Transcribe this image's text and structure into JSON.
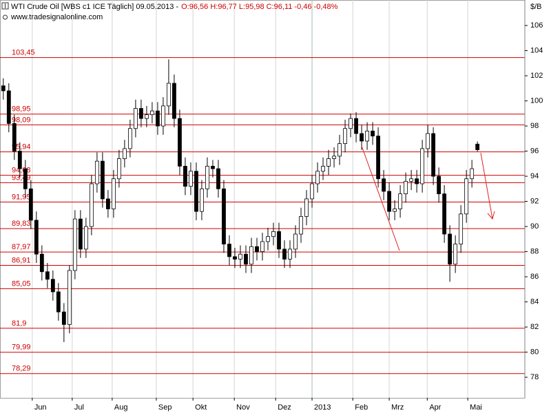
{
  "chart_data": {
    "type": "candlestick",
    "title": "WTI Crude Oil [WBS c1 ICE  Täglich] 09.05.2013 -",
    "quote": "O:96,56 H:96,77 L:95,98 C:96,11 -0,46 -0,48%",
    "subtitle": "www.tradesignalonline.com",
    "unit": "$/B",
    "series": [
      {
        "open": [
          101.2,
          100.8,
          98.2,
          96.0,
          94.6,
          93.0,
          90.5,
          87.8,
          86.4,
          85.8,
          84.8,
          83.2,
          82.2,
          86.5,
          90.6,
          88.2,
          90.0,
          93.4,
          95.2,
          92.2,
          91.4,
          93.8,
          95.4,
          96.2,
          97.8,
          99.4,
          98.6,
          98.9,
          99.2,
          98.0,
          99.6,
          101.4,
          98.6,
          94.8,
          93.2,
          94.4,
          91.2,
          93.0,
          94.8,
          94.6,
          93.0,
          88.6,
          87.6,
          87.4,
          87.8,
          87.0,
          88.4,
          88.0,
          88.8,
          89.2,
          89.6,
          88.2,
          87.4,
          88.2,
          89.4,
          90.8,
          92.2,
          93.4,
          94.4,
          94.8,
          95.4,
          95.6,
          96.6,
          97.8,
          98.6,
          97.4,
          96.8,
          97.6,
          97.2,
          93.8,
          92.8,
          91.2,
          91.4,
          92.6,
          93.6,
          93.8,
          93.4,
          96.2,
          97.4,
          94.0,
          92.6,
          89.4,
          87.0,
          88.6,
          91.0,
          93.8,
          96.56
        ],
        "high": [
          101.8,
          101.4,
          98.9,
          96.7,
          95.3,
          93.7,
          91.2,
          88.5,
          87.1,
          86.5,
          85.5,
          83.9,
          86.9,
          91.3,
          91.3,
          90.7,
          94.1,
          95.9,
          95.9,
          92.9,
          94.5,
          96.1,
          96.9,
          98.5,
          100.1,
          100.1,
          99.6,
          99.9,
          99.9,
          100.3,
          103.3,
          102.1,
          99.3,
          95.5,
          95.1,
          95.1,
          93.7,
          95.5,
          95.3,
          95.3,
          93.7,
          89.3,
          88.3,
          88.5,
          88.5,
          89.1,
          89.1,
          89.5,
          89.9,
          90.3,
          90.3,
          88.9,
          88.9,
          90.1,
          91.5,
          92.9,
          94.1,
          95.1,
          95.5,
          96.1,
          96.3,
          97.3,
          98.5,
          99.0,
          99.1,
          98.1,
          98.3,
          98.3,
          97.9,
          94.5,
          93.5,
          92.1,
          93.3,
          94.3,
          94.5,
          94.5,
          96.9,
          98.1,
          97.9,
          94.7,
          93.3,
          90.1,
          89.3,
          91.7,
          94.5,
          95.3,
          96.77
        ],
        "low": [
          100.1,
          97.5,
          95.3,
          93.9,
          92.3,
          89.8,
          87.1,
          85.7,
          85.1,
          84.1,
          82.5,
          80.8,
          81.5,
          85.8,
          87.5,
          87.5,
          89.3,
          92.7,
          91.5,
          90.7,
          90.7,
          93.1,
          94.7,
          95.5,
          97.1,
          97.9,
          97.9,
          98.2,
          97.3,
          97.3,
          98.9,
          97.9,
          94.1,
          92.5,
          92.5,
          90.5,
          90.5,
          92.3,
          93.9,
          92.3,
          87.9,
          86.9,
          86.7,
          86.7,
          86.3,
          86.3,
          87.3,
          87.3,
          88.1,
          88.5,
          87.5,
          86.7,
          86.7,
          87.5,
          88.7,
          90.1,
          91.5,
          92.7,
          93.7,
          94.1,
          94.7,
          94.9,
          95.9,
          97.1,
          96.7,
          96.1,
          96.1,
          96.5,
          93.1,
          92.1,
          90.5,
          90.5,
          90.7,
          91.9,
          92.9,
          92.7,
          92.7,
          95.5,
          93.3,
          91.9,
          88.7,
          85.6,
          86.3,
          87.9,
          90.3,
          93.1,
          95.98
        ],
        "close": [
          100.8,
          98.2,
          96.0,
          94.6,
          93.0,
          90.5,
          87.8,
          86.4,
          85.8,
          84.8,
          83.2,
          82.2,
          86.5,
          90.6,
          88.2,
          90.0,
          93.4,
          95.2,
          92.2,
          91.4,
          93.8,
          95.4,
          96.2,
          97.8,
          99.4,
          98.6,
          98.9,
          99.2,
          98.0,
          99.6,
          101.4,
          98.6,
          94.8,
          93.2,
          94.4,
          91.2,
          93.0,
          94.8,
          94.6,
          93.0,
          88.6,
          87.6,
          87.4,
          87.8,
          87.0,
          88.4,
          88.0,
          88.8,
          89.2,
          89.6,
          88.2,
          87.4,
          88.2,
          89.4,
          90.8,
          92.2,
          93.4,
          94.4,
          94.8,
          95.4,
          95.6,
          96.6,
          97.8,
          98.6,
          97.4,
          96.8,
          97.6,
          97.2,
          93.8,
          92.8,
          91.2,
          91.4,
          92.6,
          93.6,
          93.8,
          93.4,
          96.2,
          97.4,
          94.0,
          92.6,
          89.4,
          87.0,
          88.6,
          91.0,
          93.8,
          94.6,
          96.11
        ],
        "up_color": "#ffffff",
        "down_color": "#000000",
        "outline_color": "#000000"
      }
    ],
    "levels": [
      {
        "value": 103.45,
        "label": "103,45"
      },
      {
        "value": 98.95,
        "label": "98,95"
      },
      {
        "value": 98.09,
        "label": "98,09"
      },
      {
        "value": 95.94,
        "label": "95,94"
      },
      {
        "value": 94.08,
        "label": "94,08"
      },
      {
        "value": 93.49,
        "label": "93,49"
      },
      {
        "value": 91.95,
        "label": "91,95"
      },
      {
        "value": 89.83,
        "label": "89,83"
      },
      {
        "value": 87.97,
        "label": "87,97"
      },
      {
        "value": 86.91,
        "label": "86,91"
      },
      {
        "value": 85.05,
        "label": "85,05"
      },
      {
        "value": 81.9,
        "label": "81,9"
      },
      {
        "value": 79.99,
        "label": "79,99"
      },
      {
        "value": 78.29,
        "label": "78,29"
      }
    ],
    "level_color": "#cc0000",
    "ylim": [
      76.36,
      108.03
    ],
    "yticks": [
      78,
      80,
      82,
      84,
      86,
      88,
      90,
      92,
      94,
      96,
      98,
      100,
      102,
      104,
      106
    ],
    "xlim": [
      -0.6,
      94.6
    ],
    "xticks": [
      {
        "value": 5.25,
        "label": "Jun"
      },
      {
        "value": 12.5,
        "label": "Jul"
      },
      {
        "value": 19.75,
        "label": "Aug"
      },
      {
        "value": 27.75,
        "label": "Sep"
      },
      {
        "value": 34.4,
        "label": "Okt"
      },
      {
        "value": 41.9,
        "label": "Nov"
      },
      {
        "value": 49.4,
        "label": "Dez"
      },
      {
        "value": 56,
        "label": "2013"
      },
      {
        "value": 63.4,
        "label": "Feb"
      },
      {
        "value": 70,
        "label": "Mrz"
      },
      {
        "value": 76.9,
        "label": "Apr"
      },
      {
        "value": 84.25,
        "label": "Mai"
      }
    ],
    "grid": true
  }
}
